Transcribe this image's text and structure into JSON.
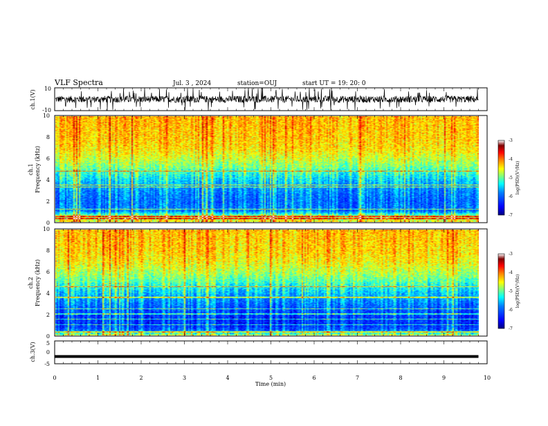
{
  "header": {
    "title": "VLF Spectra",
    "date": "Jul. 3 , 2024",
    "station": "station=OUJ",
    "start_ut": "start UT =  19: 20: 0"
  },
  "panels": {
    "ch1_waveform": {
      "ylabel": "ch.1(V)",
      "ylim": [
        -10,
        10
      ],
      "tick_labels": [
        "10",
        "-10"
      ]
    },
    "ch1_spectrogram": {
      "ylabel_1": "ch.1",
      "ylabel_2": "Frequency (kHz)",
      "ylim": [
        0,
        10
      ],
      "tick_labels": [
        "10",
        "8",
        "6",
        "4",
        "2",
        "0"
      ]
    },
    "ch2_spectrogram": {
      "ylabel_1": "ch.2",
      "ylabel_2": "Frequency (kHz)",
      "ylim": [
        0,
        10
      ],
      "tick_labels": [
        "10",
        "8",
        "6",
        "4",
        "2",
        "0"
      ]
    },
    "ch3_waveform": {
      "ylabel": "ch.3(V)",
      "ylim": [
        -5,
        5
      ],
      "tick_labels": [
        "5",
        "0",
        "-5"
      ]
    }
  },
  "colorbar": {
    "label": "log(PSD)(V²/Hz)",
    "range": [
      -7,
      -3
    ],
    "tick_labels": [
      "-3",
      "-4",
      "-5",
      "-6",
      "-7"
    ],
    "colormap": [
      "#00007f",
      "#0000ff",
      "#007fff",
      "#00ffff",
      "#7fff7f",
      "#ffff00",
      "#ff7f00",
      "#ff0000",
      "#7f0000",
      "#ffffff"
    ]
  },
  "x_axis": {
    "label": "Time (min)",
    "range": [
      0,
      10
    ],
    "tick_labels": [
      "0",
      "1",
      "2",
      "3",
      "4",
      "5",
      "6",
      "7",
      "8",
      "9",
      "10"
    ]
  },
  "chart_data": [
    {
      "type": "line",
      "title": "",
      "ylabel": "ch.1(V)",
      "xlim": [
        0,
        9.8
      ],
      "ylim": [
        -10,
        10
      ],
      "series": [
        {
          "description_values": {
            "baseline": 0,
            "typical_range": [
              -4,
              4
            ],
            "spikes_to": [
              -10,
              10
            ]
          }
        }
      ]
    },
    {
      "type": "heatmap",
      "ylabel": "ch.1 Frequency (kHz)",
      "xlim": [
        0,
        9.8
      ],
      "ylim": [
        0,
        10
      ],
      "z_range": [
        -7,
        -3
      ],
      "freq_profile_kHz": [
        0,
        0.5,
        1,
        2,
        3,
        4,
        5,
        6,
        7,
        8,
        9,
        10
      ],
      "mean_log_psd": [
        -4.0,
        -4.2,
        -5.6,
        -5.7,
        -5.5,
        -5.1,
        -4.6,
        -4.2,
        -3.9,
        -3.8,
        -3.75,
        -3.7
      ]
    },
    {
      "type": "heatmap",
      "ylabel": "ch.2 Frequency (kHz)",
      "xlim": [
        0,
        9.8
      ],
      "ylim": [
        0,
        10
      ],
      "z_range": [
        -7,
        -3
      ],
      "freq_profile_kHz": [
        0,
        0.5,
        1,
        2,
        3,
        4,
        5,
        6,
        7,
        8,
        9,
        10
      ],
      "mean_log_psd": [
        -4.3,
        -5.8,
        -6.1,
        -6.0,
        -5.6,
        -5.2,
        -4.7,
        -4.3,
        -4.0,
        -3.85,
        -3.8,
        -3.75
      ]
    },
    {
      "type": "line",
      "ylabel": "ch.3(V)",
      "xlim": [
        0,
        9.8
      ],
      "ylim": [
        -5,
        5
      ],
      "series": [
        {
          "x": [
            0,
            9.8
          ],
          "y": [
            -1.8,
            -1.8
          ]
        }
      ]
    }
  ]
}
